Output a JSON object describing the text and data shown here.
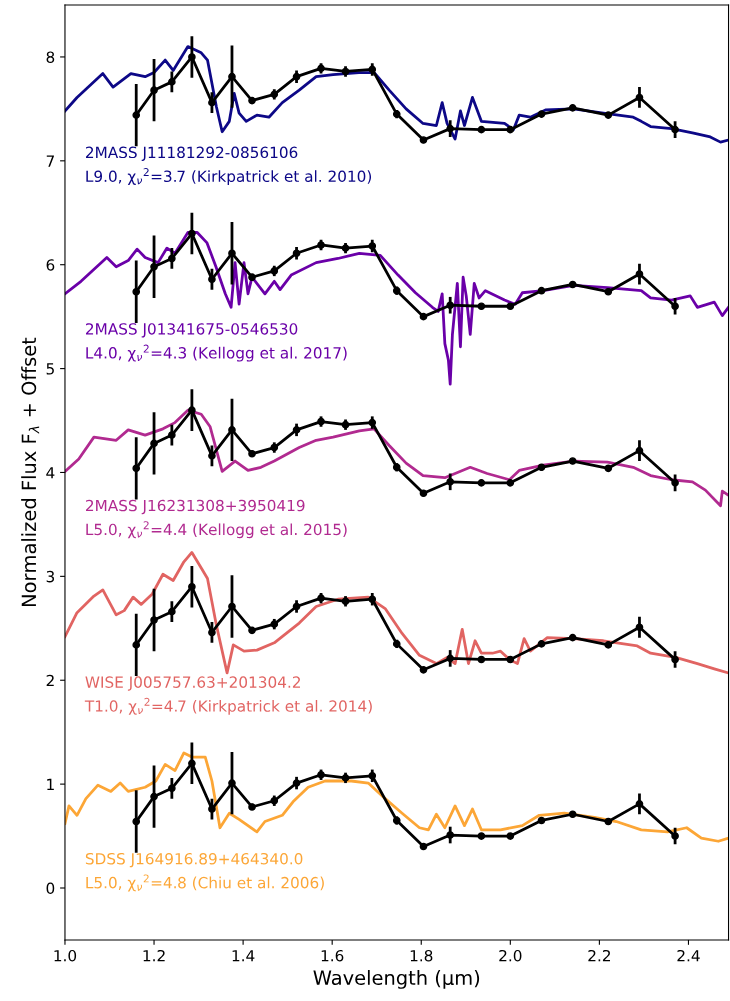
{
  "chart_data": {
    "type": "line",
    "xlabel": "Wavelength (μm)",
    "ylabel": "Normalized Flux F$_{λ}$ + Offset",
    "xlim": [
      1.0,
      2.49
    ],
    "ylim": [
      -0.5,
      8.5
    ],
    "xticks": [
      {
        "value": 1.0,
        "label": "1.0"
      },
      {
        "value": 1.2,
        "label": "1.2"
      },
      {
        "value": 1.4,
        "label": "1.4"
      },
      {
        "value": 1.6,
        "label": "1.6"
      },
      {
        "value": 1.8,
        "label": "1.8"
      },
      {
        "value": 2.0,
        "label": "2.0"
      },
      {
        "value": 2.2,
        "label": "2.2"
      },
      {
        "value": 2.4,
        "label": "2.4"
      }
    ],
    "yticks": [
      0,
      1,
      2,
      3,
      4,
      5,
      6,
      7,
      8
    ],
    "grid": false,
    "legend": false,
    "series": [
      {
        "name": "2MASS J11181292-0856106\nL9.0, χ$_{ν}$$^{2}$=3.7 (Kirkpatrick et al. 2010)",
        "color": "#0d0887",
        "marker": "none",
        "x": [
          1.0,
          1.027,
          1.085,
          1.108,
          1.148,
          1.18,
          1.2,
          1.225,
          1.243,
          1.276,
          1.306,
          1.32,
          1.34,
          1.353,
          1.369,
          1.38,
          1.391,
          1.407,
          1.431,
          1.458,
          1.488,
          1.526,
          1.564,
          1.602,
          1.66,
          1.694,
          1.728,
          1.766,
          1.804,
          1.834,
          1.847,
          1.858,
          1.876,
          1.888,
          1.897,
          1.915,
          1.935,
          1.987,
          2.007,
          2.02,
          2.045,
          2.079,
          2.142,
          2.209,
          2.276,
          2.294,
          2.315,
          2.362,
          2.409,
          2.449,
          2.472,
          2.49
        ],
        "values": [
          7.48,
          7.61,
          7.84,
          7.71,
          7.84,
          7.81,
          7.85,
          7.97,
          7.87,
          8.1,
          8.04,
          7.97,
          7.52,
          7.28,
          7.38,
          7.65,
          7.46,
          7.38,
          7.44,
          7.42,
          7.56,
          7.68,
          7.81,
          7.83,
          7.85,
          7.85,
          7.68,
          7.5,
          7.36,
          7.34,
          7.56,
          7.36,
          7.21,
          7.48,
          7.34,
          7.61,
          7.38,
          7.36,
          7.3,
          7.44,
          7.42,
          7.49,
          7.5,
          7.46,
          7.42,
          7.38,
          7.33,
          7.31,
          7.27,
          7.23,
          7.18,
          7.2
        ]
      },
      {
        "color": "#000000",
        "marker": "circle",
        "x": [
          1.16,
          1.2,
          1.24,
          1.285,
          1.33,
          1.375,
          1.42,
          1.47,
          1.52,
          1.575,
          1.63,
          1.69,
          1.745,
          1.805,
          1.865,
          1.935,
          2.0,
          2.07,
          2.14,
          2.22,
          2.29,
          2.37
        ],
        "values": [
          7.44,
          7.68,
          7.76,
          8.0,
          7.56,
          7.81,
          7.58,
          7.64,
          7.81,
          7.89,
          7.86,
          7.88,
          7.45,
          7.2,
          7.31,
          7.3,
          7.3,
          7.45,
          7.51,
          7.44,
          7.61,
          7.3
        ],
        "errors": [
          0.3,
          0.3,
          0.1,
          0.2,
          0.1,
          0.3,
          0.03,
          0.05,
          0.06,
          0.05,
          0.05,
          0.06,
          0.04,
          0.02,
          0.08,
          0.02,
          0.02,
          0.03,
          0.02,
          0.03,
          0.1,
          0.08
        ]
      },
      {
        "name": "2MASS J01341675-0546530\nL4.0, χ$_{ν}$$^{2}$=4.3 (Kellogg et al. 2017)",
        "color": "#6a00a8",
        "marker": "none",
        "x": [
          1.0,
          1.036,
          1.094,
          1.115,
          1.142,
          1.162,
          1.18,
          1.209,
          1.229,
          1.247,
          1.276,
          1.297,
          1.319,
          1.339,
          1.36,
          1.373,
          1.382,
          1.391,
          1.402,
          1.411,
          1.42,
          1.449,
          1.47,
          1.483,
          1.508,
          1.564,
          1.613,
          1.661,
          1.708,
          1.748,
          1.787,
          1.825,
          1.838,
          1.847,
          1.853,
          1.861,
          1.865,
          1.87,
          1.881,
          1.888,
          1.894,
          1.901,
          1.91,
          1.919,
          1.93,
          1.944,
          1.987,
          2.011,
          2.027,
          2.074,
          2.142,
          2.218,
          2.294,
          2.315,
          2.362,
          2.404,
          2.42,
          2.458,
          2.476,
          2.49
        ],
        "values": [
          5.72,
          5.84,
          6.07,
          5.98,
          6.04,
          6.15,
          6.07,
          6.02,
          6.16,
          6.11,
          6.31,
          6.31,
          6.21,
          5.98,
          5.72,
          5.59,
          6.02,
          5.62,
          6.02,
          5.72,
          5.88,
          5.72,
          5.84,
          5.76,
          5.9,
          6.02,
          6.06,
          6.11,
          6.09,
          5.9,
          5.73,
          5.59,
          5.55,
          5.72,
          5.24,
          5.08,
          4.85,
          5.33,
          5.82,
          5.21,
          5.88,
          5.7,
          5.33,
          5.82,
          5.68,
          5.75,
          5.66,
          5.62,
          5.73,
          5.75,
          5.8,
          5.78,
          5.75,
          5.68,
          5.66,
          5.7,
          5.59,
          5.64,
          5.51,
          5.59
        ]
      },
      {
        "color": "#000000",
        "marker": "circle",
        "x": [
          1.16,
          1.2,
          1.24,
          1.285,
          1.33,
          1.375,
          1.42,
          1.47,
          1.52,
          1.575,
          1.63,
          1.69,
          1.745,
          1.805,
          1.865,
          1.935,
          2.0,
          2.07,
          2.14,
          2.22,
          2.29,
          2.37
        ],
        "values": [
          5.74,
          5.98,
          6.06,
          6.3,
          5.86,
          6.11,
          5.88,
          5.94,
          6.11,
          6.19,
          6.16,
          6.18,
          5.75,
          5.5,
          5.61,
          5.6,
          5.6,
          5.75,
          5.81,
          5.74,
          5.91,
          5.6
        ],
        "errors": [
          0.3,
          0.3,
          0.1,
          0.2,
          0.1,
          0.3,
          0.03,
          0.05,
          0.06,
          0.05,
          0.05,
          0.06,
          0.04,
          0.02,
          0.08,
          0.02,
          0.02,
          0.03,
          0.02,
          0.03,
          0.1,
          0.08
        ]
      },
      {
        "name": "2MASS J16231308+3950419\nL5.0, χ$_{ν}$$^{2}$=4.4 (Kellogg et al. 2015)",
        "color": "#b12a90",
        "marker": "none",
        "x": [
          1.0,
          1.031,
          1.065,
          1.115,
          1.142,
          1.18,
          1.22,
          1.247,
          1.276,
          1.306,
          1.326,
          1.353,
          1.382,
          1.411,
          1.44,
          1.47,
          1.526,
          1.564,
          1.602,
          1.661,
          1.694,
          1.728,
          1.766,
          1.804,
          1.853,
          1.91,
          1.948,
          1.998,
          2.02,
          2.074,
          2.142,
          2.218,
          2.276,
          2.315,
          2.362,
          2.409,
          2.438,
          2.472,
          2.476,
          2.49
        ],
        "values": [
          4.01,
          4.13,
          4.34,
          4.31,
          4.41,
          4.36,
          4.42,
          4.48,
          4.6,
          4.56,
          4.44,
          4.01,
          4.11,
          4.02,
          4.05,
          4.11,
          4.24,
          4.31,
          4.34,
          4.4,
          4.42,
          4.26,
          4.09,
          3.97,
          3.95,
          4.05,
          3.99,
          3.93,
          4.02,
          4.07,
          4.11,
          4.1,
          4.05,
          3.97,
          3.93,
          3.91,
          3.83,
          3.68,
          3.82,
          3.78
        ]
      },
      {
        "color": "#000000",
        "marker": "circle",
        "x": [
          1.16,
          1.2,
          1.24,
          1.285,
          1.33,
          1.375,
          1.42,
          1.47,
          1.52,
          1.575,
          1.63,
          1.69,
          1.745,
          1.805,
          1.865,
          1.935,
          2.0,
          2.07,
          2.14,
          2.22,
          2.29,
          2.37
        ],
        "values": [
          4.04,
          4.28,
          4.36,
          4.6,
          4.16,
          4.41,
          4.18,
          4.24,
          4.41,
          4.49,
          4.46,
          4.48,
          4.05,
          3.8,
          3.91,
          3.9,
          3.9,
          4.05,
          4.11,
          4.04,
          4.21,
          3.9
        ],
        "errors": [
          0.3,
          0.3,
          0.1,
          0.2,
          0.1,
          0.3,
          0.03,
          0.05,
          0.06,
          0.05,
          0.05,
          0.06,
          0.04,
          0.02,
          0.08,
          0.02,
          0.02,
          0.03,
          0.02,
          0.03,
          0.1,
          0.08
        ]
      },
      {
        "name": "WISE J005757.63+201304.2\nT1.0, χ$_{ν}$$^{2}$=4.7 (Kirkpatrick et al. 2014)",
        "color": "#e16462",
        "marker": "none",
        "x": [
          1.0,
          1.027,
          1.065,
          1.085,
          1.115,
          1.133,
          1.153,
          1.171,
          1.196,
          1.22,
          1.243,
          1.267,
          1.285,
          1.306,
          1.32,
          1.34,
          1.364,
          1.378,
          1.402,
          1.431,
          1.47,
          1.526,
          1.564,
          1.613,
          1.681,
          1.719,
          1.757,
          1.796,
          1.834,
          1.858,
          1.876,
          1.892,
          1.906,
          1.921,
          1.935,
          1.96,
          1.978,
          1.998,
          2.016,
          2.031,
          2.045,
          2.083,
          2.142,
          2.209,
          2.285,
          2.315,
          2.371,
          2.42,
          2.458,
          2.49
        ],
        "values": [
          2.42,
          2.65,
          2.81,
          2.87,
          2.63,
          2.67,
          2.8,
          2.73,
          2.83,
          3.02,
          2.96,
          3.14,
          3.23,
          3.08,
          2.98,
          2.53,
          2.07,
          2.34,
          2.28,
          2.29,
          2.36,
          2.55,
          2.71,
          2.78,
          2.8,
          2.69,
          2.45,
          2.24,
          2.16,
          2.22,
          2.16,
          2.49,
          2.16,
          2.38,
          2.26,
          2.26,
          2.28,
          2.2,
          2.16,
          2.4,
          2.28,
          2.41,
          2.4,
          2.38,
          2.33,
          2.26,
          2.22,
          2.16,
          2.11,
          2.07
        ]
      },
      {
        "color": "#000000",
        "marker": "circle",
        "x": [
          1.16,
          1.2,
          1.24,
          1.285,
          1.33,
          1.375,
          1.42,
          1.47,
          1.52,
          1.575,
          1.63,
          1.69,
          1.745,
          1.805,
          1.865,
          1.935,
          2.0,
          2.07,
          2.14,
          2.22,
          2.29,
          2.37
        ],
        "values": [
          2.34,
          2.58,
          2.66,
          2.9,
          2.46,
          2.71,
          2.48,
          2.54,
          2.71,
          2.79,
          2.76,
          2.78,
          2.35,
          2.1,
          2.21,
          2.2,
          2.2,
          2.35,
          2.41,
          2.34,
          2.51,
          2.2
        ],
        "errors": [
          0.3,
          0.3,
          0.1,
          0.2,
          0.1,
          0.3,
          0.03,
          0.05,
          0.06,
          0.05,
          0.05,
          0.06,
          0.04,
          0.02,
          0.08,
          0.02,
          0.02,
          0.03,
          0.02,
          0.03,
          0.1,
          0.08
        ]
      },
      {
        "name": "SDSS J164916.89+464340.0\nL5.0, χ$_{ν}$$^{2}$=4.8 (Chiu et al. 2006)",
        "color": "#fca636",
        "marker": "none",
        "x": [
          1.0,
          1.009,
          1.027,
          1.047,
          1.074,
          1.103,
          1.124,
          1.142,
          1.18,
          1.204,
          1.225,
          1.247,
          1.267,
          1.285,
          1.315,
          1.33,
          1.348,
          1.369,
          1.391,
          1.431,
          1.449,
          1.488,
          1.512,
          1.546,
          1.584,
          1.643,
          1.681,
          1.719,
          1.757,
          1.796,
          1.816,
          1.834,
          1.853,
          1.876,
          1.897,
          1.915,
          1.935,
          1.978,
          2.027,
          2.065,
          2.121,
          2.189,
          2.238,
          2.294,
          2.353,
          2.396,
          2.429,
          2.467,
          2.49
        ],
        "values": [
          0.62,
          0.79,
          0.7,
          0.86,
          0.99,
          0.93,
          1.01,
          0.93,
          0.97,
          1.03,
          1.19,
          1.13,
          1.3,
          1.26,
          1.26,
          1.03,
          0.58,
          0.72,
          0.66,
          0.54,
          0.64,
          0.7,
          0.83,
          0.97,
          1.03,
          1.03,
          1.01,
          0.86,
          0.72,
          0.58,
          0.56,
          0.71,
          0.58,
          0.79,
          0.6,
          0.76,
          0.56,
          0.56,
          0.6,
          0.7,
          0.72,
          0.68,
          0.64,
          0.56,
          0.54,
          0.58,
          0.48,
          0.45,
          0.48
        ]
      },
      {
        "color": "#000000",
        "marker": "circle",
        "x": [
          1.16,
          1.2,
          1.24,
          1.285,
          1.33,
          1.375,
          1.42,
          1.47,
          1.52,
          1.575,
          1.63,
          1.69,
          1.745,
          1.805,
          1.865,
          1.935,
          2.0,
          2.07,
          2.14,
          2.22,
          2.29,
          2.37
        ],
        "values": [
          0.64,
          0.88,
          0.96,
          1.2,
          0.76,
          1.01,
          0.78,
          0.84,
          1.01,
          1.09,
          1.06,
          1.08,
          0.65,
          0.4,
          0.51,
          0.5,
          0.5,
          0.65,
          0.71,
          0.64,
          0.81,
          0.5
        ],
        "errors": [
          0.3,
          0.3,
          0.1,
          0.2,
          0.1,
          0.3,
          0.03,
          0.05,
          0.06,
          0.05,
          0.05,
          0.06,
          0.04,
          0.02,
          0.08,
          0.02,
          0.02,
          0.03,
          0.02,
          0.03,
          0.1,
          0.08
        ]
      }
    ]
  }
}
